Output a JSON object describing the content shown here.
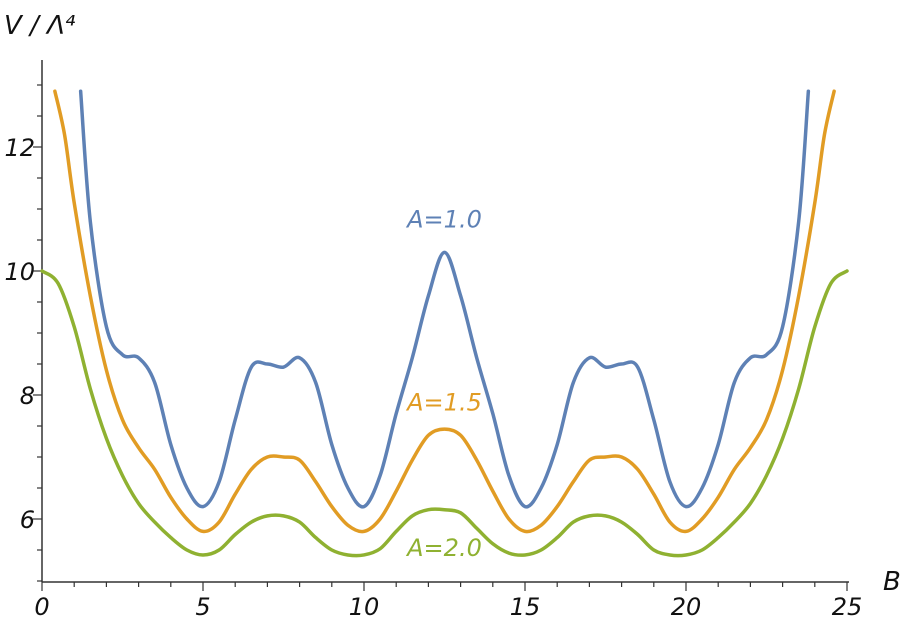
{
  "chart_data": {
    "type": "line",
    "title": "",
    "xlabel": "B",
    "ylabel": "V / Λ⁴",
    "xlim": [
      0,
      25
    ],
    "ylim": [
      5,
      13
    ],
    "grid": false,
    "x_ticks": [
      0,
      5,
      10,
      15,
      20,
      25
    ],
    "x_tick_labels": [
      "0",
      "5",
      "10",
      "15",
      "20",
      "25"
    ],
    "y_ticks": [
      6,
      8,
      10,
      12
    ],
    "y_tick_labels": [
      "6",
      "8",
      "10",
      "12"
    ],
    "series": [
      {
        "name": "A=1.0",
        "color": "#5e81b5",
        "x": [
          1.2,
          1.5,
          2.0,
          2.5,
          3.0,
          3.5,
          4.0,
          4.5,
          5.0,
          5.5,
          6.0,
          6.5,
          7.0,
          7.5,
          8.0,
          8.5,
          9.0,
          9.5,
          10.0,
          10.5,
          11.0,
          11.5,
          12.0,
          12.5,
          13.0,
          13.5,
          14.0,
          14.5,
          15.0,
          15.5,
          16.0,
          16.5,
          17.0,
          17.5,
          18.0,
          18.5,
          19.0,
          19.5,
          20.0,
          20.5,
          21.0,
          21.5,
          22.0,
          22.5,
          23.0,
          23.5,
          23.8
        ],
        "y": [
          12.9,
          10.8,
          9.1,
          8.65,
          8.6,
          8.2,
          7.2,
          6.5,
          6.2,
          6.6,
          7.6,
          8.45,
          8.5,
          8.45,
          8.6,
          8.2,
          7.2,
          6.5,
          6.2,
          6.7,
          7.7,
          8.6,
          9.6,
          10.3,
          9.6,
          8.6,
          7.7,
          6.7,
          6.2,
          6.5,
          7.2,
          8.2,
          8.6,
          8.45,
          8.5,
          8.45,
          7.6,
          6.6,
          6.2,
          6.5,
          7.2,
          8.2,
          8.6,
          8.65,
          9.1,
          10.8,
          12.9
        ]
      },
      {
        "name": "A=1.5",
        "color": "#e19c24",
        "x": [
          0.4,
          0.7,
          1.0,
          1.5,
          2.0,
          2.5,
          3.0,
          3.5,
          4.0,
          4.5,
          5.0,
          5.5,
          6.0,
          6.5,
          7.0,
          7.5,
          8.0,
          8.5,
          9.0,
          9.5,
          10.0,
          10.5,
          11.0,
          11.5,
          12.0,
          12.5,
          13.0,
          13.5,
          14.0,
          14.5,
          15.0,
          15.5,
          16.0,
          16.5,
          17.0,
          17.5,
          18.0,
          18.5,
          19.0,
          19.5,
          20.0,
          20.5,
          21.0,
          21.5,
          22.0,
          22.5,
          23.0,
          23.5,
          24.0,
          24.3,
          24.6
        ],
        "y": [
          12.9,
          12.2,
          11.1,
          9.6,
          8.4,
          7.6,
          7.15,
          6.8,
          6.35,
          6.0,
          5.8,
          5.95,
          6.4,
          6.8,
          7.0,
          7.0,
          6.95,
          6.6,
          6.2,
          5.9,
          5.8,
          6.0,
          6.45,
          6.95,
          7.35,
          7.45,
          7.35,
          6.95,
          6.45,
          6.0,
          5.8,
          5.9,
          6.2,
          6.6,
          6.95,
          7.0,
          7.0,
          6.8,
          6.4,
          5.95,
          5.8,
          6.0,
          6.35,
          6.8,
          7.15,
          7.6,
          8.4,
          9.6,
          11.1,
          12.2,
          12.9
        ]
      },
      {
        "name": "A=2.0",
        "color": "#8fb131",
        "x": [
          0.0,
          0.5,
          1.0,
          1.5,
          2.0,
          2.5,
          3.0,
          3.5,
          4.0,
          4.5,
          5.0,
          5.5,
          6.0,
          6.5,
          7.0,
          7.5,
          8.0,
          8.5,
          9.0,
          9.5,
          10.0,
          10.5,
          11.0,
          11.5,
          12.0,
          12.5,
          13.0,
          13.5,
          14.0,
          14.5,
          15.0,
          15.5,
          16.0,
          16.5,
          17.0,
          17.5,
          18.0,
          18.5,
          19.0,
          19.5,
          20.0,
          20.5,
          21.0,
          21.5,
          22.0,
          22.5,
          23.0,
          23.5,
          24.0,
          24.5,
          25.0
        ],
        "y": [
          10.0,
          9.8,
          9.1,
          8.1,
          7.3,
          6.7,
          6.25,
          5.95,
          5.7,
          5.5,
          5.42,
          5.5,
          5.75,
          5.95,
          6.05,
          6.05,
          5.95,
          5.7,
          5.5,
          5.42,
          5.42,
          5.52,
          5.8,
          6.05,
          6.15,
          6.15,
          6.1,
          5.85,
          5.6,
          5.45,
          5.42,
          5.5,
          5.7,
          5.95,
          6.05,
          6.05,
          5.95,
          5.75,
          5.5,
          5.42,
          5.42,
          5.5,
          5.7,
          5.95,
          6.25,
          6.7,
          7.3,
          8.1,
          9.1,
          9.8,
          10.0
        ]
      }
    ],
    "annotations": [
      {
        "text": "A=1.0",
        "x": 12.5,
        "y": 10.7,
        "series": 0
      },
      {
        "text": "A=1.5",
        "x": 12.5,
        "y": 7.75,
        "series": 1
      },
      {
        "text": "A=2.0",
        "x": 12.5,
        "y": 5.4,
        "series": 2
      }
    ]
  }
}
